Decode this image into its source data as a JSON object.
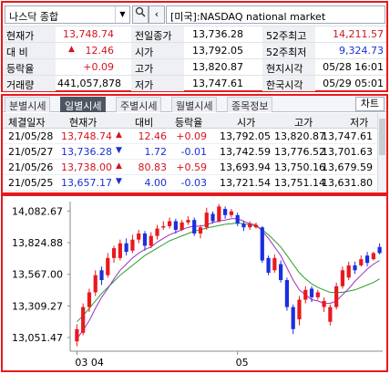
{
  "search": {
    "market_select": "나스닥 종합",
    "dropdown_icon": "caret-down-icon",
    "search_icon": "magnifier-icon",
    "prev_icon": "chevron-left-icon",
    "market_name": "[미국]:NASDAQ national market"
  },
  "quote": {
    "rows": [
      {
        "l1": "현재가",
        "v1": "13,748.74",
        "l2": "전일종가",
        "v2": "13,736.28",
        "l3": "52주최고",
        "v3": "14,211.57"
      },
      {
        "l1": "대 비",
        "v1": "12.46",
        "l2": "시가",
        "v2": "13,792.05",
        "l3": "52주최저",
        "v3": "9,324.73"
      },
      {
        "l1": "등락율",
        "v1": "+0.09",
        "l2": "고가",
        "v2": "13,820.87",
        "l3": "현지시각",
        "v3": "05/28 16:01"
      },
      {
        "l1": "거래량",
        "v1": "441,057,878",
        "l2": "저가",
        "v2": "13,747.61",
        "l3": "한국시각",
        "v3": "05/29 05:01"
      }
    ],
    "colors": {
      "up": "#d4141e",
      "down": "#1730d4"
    }
  },
  "tabs": [
    "분별시세",
    "일별시세",
    "주별시세",
    "월별시세",
    "종목정보"
  ],
  "chart_button": "차트",
  "table": {
    "headers": [
      "체결일자",
      "현재가",
      "대비",
      "등락율",
      "시가",
      "고가",
      "저가"
    ],
    "rows": [
      {
        "date": "21/05/28",
        "price": "13,748.74",
        "dir": "▲",
        "change": "12.46",
        "rate": "+0.09",
        "open": "13,792.05",
        "high": "13,820.87",
        "low": "13,747.61"
      },
      {
        "date": "21/05/27",
        "price": "13,736.28",
        "dir": "▼",
        "change": "1.72",
        "rate": "-0.01",
        "open": "13,742.59",
        "high": "13,776.52",
        "low": "13,701.63"
      },
      {
        "date": "21/05/26",
        "price": "13,738.00",
        "dir": "▲",
        "change": "80.83",
        "rate": "+0.59",
        "open": "13,693.94",
        "high": "13,750.16",
        "low": "13,679.59"
      },
      {
        "date": "21/05/25",
        "price": "13,657.17",
        "dir": "▼",
        "change": "4.00",
        "rate": "-0.03",
        "open": "13,721.54",
        "high": "13,751.14",
        "low": "13,631.80"
      }
    ]
  },
  "chart_data": {
    "type": "candlestick",
    "y_ticks": [
      "14,082.67",
      "13,824.88",
      "13,567.00",
      "13,309.27",
      "13,051.47"
    ],
    "y_tick_values": [
      14082.67,
      13824.88,
      13567.0,
      13309.27,
      13051.47
    ],
    "x_ticks": [
      {
        "label": "03 04",
        "index": 0
      },
      {
        "label": "05",
        "index": 26
      }
    ],
    "ylim": [
      12940,
      14160
    ],
    "candles": [
      {
        "o": 13020,
        "c": 13120,
        "h": 13160,
        "l": 12980
      },
      {
        "o": 13090,
        "c": 13300,
        "h": 13330,
        "l": 13070
      },
      {
        "o": 13300,
        "c": 13420,
        "h": 13450,
        "l": 13260
      },
      {
        "o": 13420,
        "c": 13560,
        "h": 13600,
        "l": 13390
      },
      {
        "o": 13600,
        "c": 13520,
        "h": 13630,
        "l": 13480
      },
      {
        "o": 13560,
        "c": 13700,
        "h": 13740,
        "l": 13540
      },
      {
        "o": 13700,
        "c": 13780,
        "h": 13800,
        "l": 13660
      },
      {
        "o": 13700,
        "c": 13820,
        "h": 13850,
        "l": 13680
      },
      {
        "o": 13820,
        "c": 13750,
        "h": 13860,
        "l": 13720
      },
      {
        "o": 13760,
        "c": 13850,
        "h": 13890,
        "l": 13740
      },
      {
        "o": 13850,
        "c": 13900,
        "h": 13930,
        "l": 13820
      },
      {
        "o": 13900,
        "c": 13800,
        "h": 13920,
        "l": 13760
      },
      {
        "o": 13800,
        "c": 13880,
        "h": 13910,
        "l": 13780
      },
      {
        "o": 13880,
        "c": 13940,
        "h": 13970,
        "l": 13850
      },
      {
        "o": 13950,
        "c": 13960,
        "h": 14000,
        "l": 13930
      },
      {
        "o": 13960,
        "c": 14000,
        "h": 14030,
        "l": 13940
      },
      {
        "o": 14000,
        "c": 13930,
        "h": 14020,
        "l": 13900
      },
      {
        "o": 13930,
        "c": 13990,
        "h": 14010,
        "l": 13920
      },
      {
        "o": 13990,
        "c": 14010,
        "h": 14040,
        "l": 13970
      },
      {
        "o": 14010,
        "c": 13900,
        "h": 14030,
        "l": 13880
      },
      {
        "o": 13900,
        "c": 13950,
        "h": 13970,
        "l": 13860
      },
      {
        "o": 13950,
        "c": 14070,
        "h": 14110,
        "l": 13930
      },
      {
        "o": 14060,
        "c": 14000,
        "h": 14080,
        "l": 13980
      },
      {
        "o": 14000,
        "c": 14120,
        "h": 14140,
        "l": 13990
      },
      {
        "o": 14100,
        "c": 14050,
        "h": 14120,
        "l": 14020
      },
      {
        "o": 14050,
        "c": 14080,
        "h": 14100,
        "l": 14030
      },
      {
        "o": 14050,
        "c": 13980,
        "h": 14070,
        "l": 13960
      },
      {
        "o": 13980,
        "c": 13950,
        "h": 14000,
        "l": 13920
      },
      {
        "o": 13950,
        "c": 13980,
        "h": 14000,
        "l": 13930
      },
      {
        "o": 13950,
        "c": 13970,
        "h": 13990,
        "l": 13940
      },
      {
        "o": 13950,
        "c": 13680,
        "h": 13960,
        "l": 13660
      },
      {
        "o": 13700,
        "c": 13580,
        "h": 13720,
        "l": 13560
      },
      {
        "o": 13600,
        "c": 13700,
        "h": 13730,
        "l": 13580
      },
      {
        "o": 13650,
        "c": 13520,
        "h": 13680,
        "l": 13500
      },
      {
        "o": 13520,
        "c": 13300,
        "h": 13540,
        "l": 13270
      },
      {
        "o": 13300,
        "c": 13120,
        "h": 13320,
        "l": 13080
      },
      {
        "o": 13200,
        "c": 13360,
        "h": 13390,
        "l": 13150
      },
      {
        "o": 13360,
        "c": 13440,
        "h": 13470,
        "l": 13330
      },
      {
        "o": 13450,
        "c": 13380,
        "h": 13470,
        "l": 13340
      },
      {
        "o": 13380,
        "c": 13420,
        "h": 13440,
        "l": 13360
      },
      {
        "o": 13300,
        "c": 13350,
        "h": 13380,
        "l": 13260
      },
      {
        "o": 13180,
        "c": 13300,
        "h": 13320,
        "l": 13150
      },
      {
        "o": 13300,
        "c": 13470,
        "h": 13500,
        "l": 13280
      },
      {
        "o": 13470,
        "c": 13600,
        "h": 13630,
        "l": 13450
      },
      {
        "o": 13540,
        "c": 13640,
        "h": 13670,
        "l": 13520
      },
      {
        "o": 13640,
        "c": 13600,
        "h": 13670,
        "l": 13570
      },
      {
        "o": 13640,
        "c": 13690,
        "h": 13720,
        "l": 13630
      },
      {
        "o": 13720,
        "c": 13660,
        "h": 13750,
        "l": 13630
      },
      {
        "o": 13690,
        "c": 13740,
        "h": 13750,
        "l": 13680
      },
      {
        "o": 13790,
        "c": 13740,
        "h": 13820,
        "l": 13730
      }
    ],
    "ma_short": [
      13040,
      13110,
      13190,
      13290,
      13380,
      13450,
      13530,
      13600,
      13650,
      13700,
      13740,
      13770,
      13790,
      13830,
      13860,
      13890,
      13910,
      13930,
      13950,
      13960,
      13960,
      13970,
      13990,
      14000,
      14010,
      14020,
      14020,
      14000,
      13980,
      13970,
      13920,
      13860,
      13790,
      13720,
      13620,
      13520,
      13440,
      13400,
      13360,
      13350,
      13330,
      13330,
      13350,
      13400,
      13450,
      13510,
      13560,
      13610,
      13650,
      13680
    ],
    "ma_long": [
      13180,
      13230,
      13290,
      13350,
      13410,
      13460,
      13510,
      13560,
      13600,
      13640,
      13680,
      13720,
      13750,
      13780,
      13810,
      13840,
      13860,
      13880,
      13900,
      13920,
      13930,
      13945,
      13955,
      13965,
      13975,
      13980,
      13985,
      13980,
      13970,
      13960,
      13930,
      13890,
      13840,
      13790,
      13720,
      13650,
      13580,
      13530,
      13490,
      13460,
      13440,
      13420,
      13420,
      13420,
      13430,
      13440,
      13460,
      13480,
      13500,
      13530
    ],
    "colors": {
      "up": "#e8191e",
      "down": "#1a2fe0",
      "ma_short": "#9b30c8",
      "ma_long": "#2ca02c"
    }
  }
}
